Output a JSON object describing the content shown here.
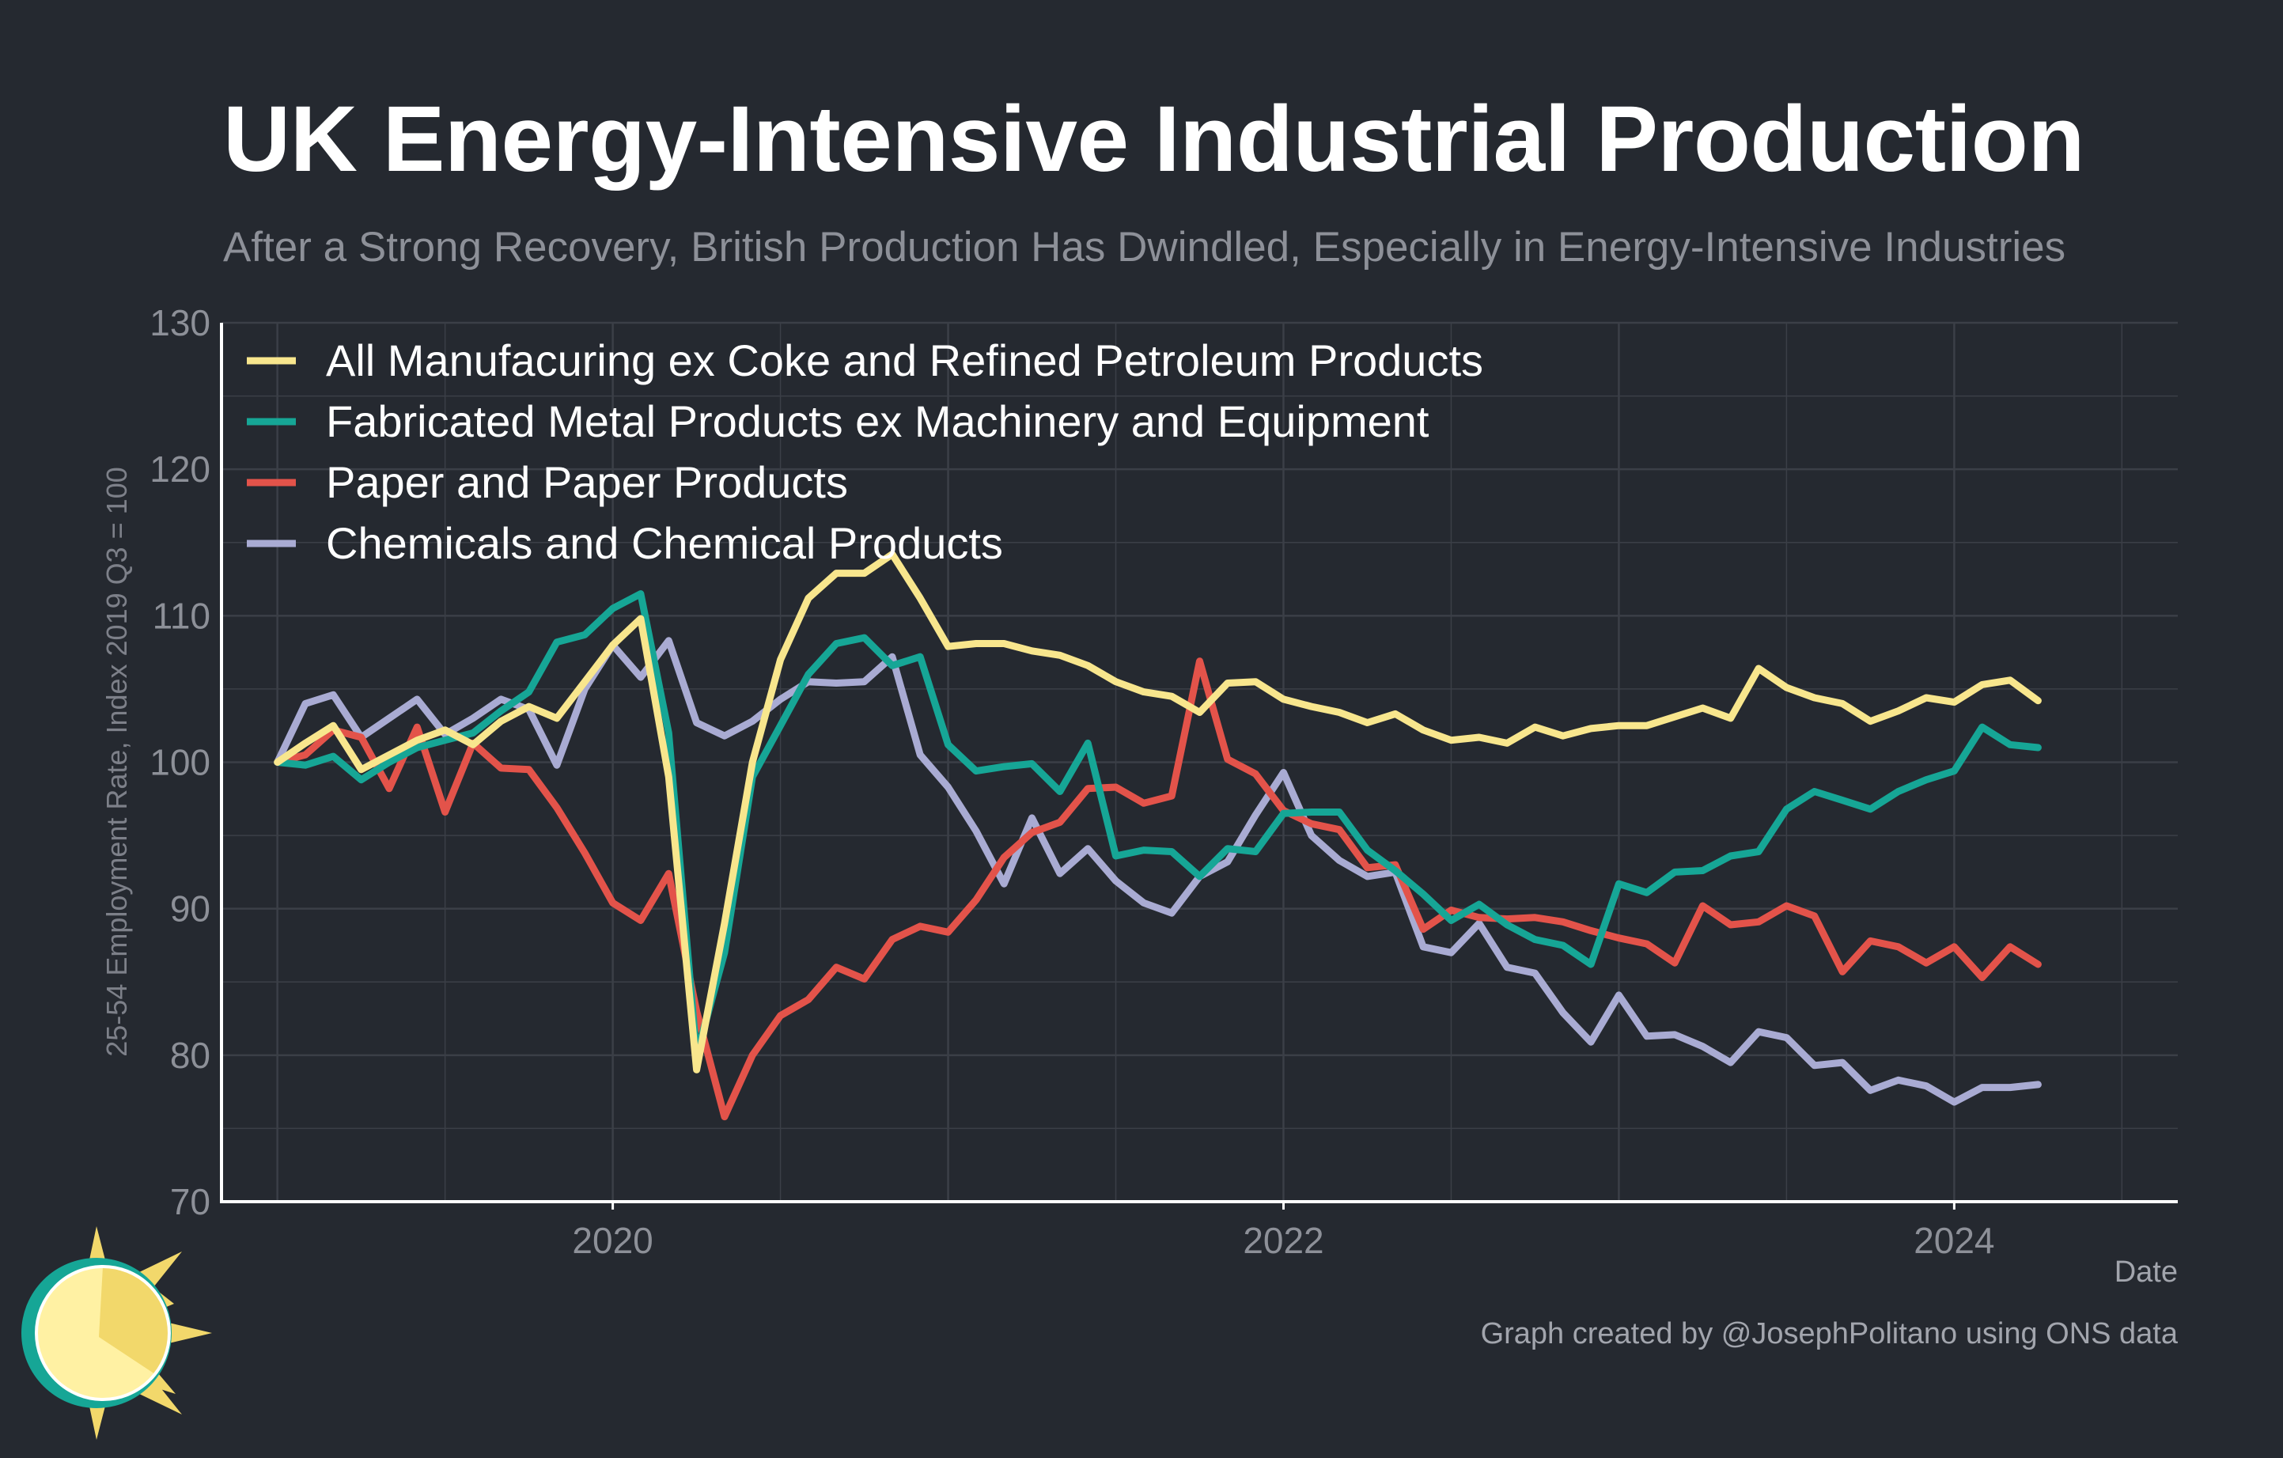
{
  "title": "UK Energy-Intensive Industrial Production",
  "subtitle": "After a Strong Recovery, British Production Has Dwindled, Especially in Energy-Intensive Industries",
  "credit": "Graph created by @JosephPolitano using ONS data",
  "colors": {
    "background": "#252930",
    "grid": "#3b3f47",
    "axis": "#ffffff",
    "text_muted": "#8d9098"
  },
  "chart_data": {
    "type": "line",
    "xlabel": "Date",
    "ylabel": "25-54 Employment Rate, Index 2019 Q3 = 100",
    "ylim": [
      70,
      130
    ],
    "yticks": [
      70,
      80,
      90,
      100,
      110,
      120,
      130
    ],
    "xlim": [
      "2018-11",
      "2024-09"
    ],
    "xticks": [
      {
        "date": "2020-01",
        "label": "2020"
      },
      {
        "date": "2022-01",
        "label": "2022"
      },
      {
        "date": "2024-01",
        "label": "2024"
      }
    ],
    "grid": true,
    "legend_position": "top-left",
    "start_month": "2019-01",
    "frequency": "monthly",
    "series": [
      {
        "name": "All Manufacuring ex Coke and Refined Petroleum Products",
        "color": "#f8e68d",
        "values": [
          100,
          101.3,
          102.5,
          99.5,
          100.5,
          101.5,
          102.2,
          101.2,
          102.8,
          103.8,
          103,
          105.5,
          108,
          109.8,
          99,
          79,
          89,
          100,
          107,
          111.2,
          112.9,
          112.9,
          114.2,
          111.2,
          107.9,
          108.1,
          108.1,
          107.6,
          107.3,
          106.6,
          105.5,
          104.8,
          104.5,
          103.4,
          105.4,
          105.5,
          104.3,
          103.8,
          103.4,
          102.7,
          103.3,
          102.2,
          101.5,
          101.7,
          101.3,
          102.4,
          101.8,
          102.3,
          102.5,
          102.5,
          103.1,
          103.7,
          103,
          106.4,
          105.1,
          104.4,
          104,
          102.8,
          103.5,
          104.4,
          104.1,
          105.3,
          105.6,
          104.2
        ]
      },
      {
        "name": "Fabricated Metal Products ex Machinery and Equipment",
        "color": "#16a696",
        "values": [
          100,
          99.8,
          100.4,
          98.8,
          100,
          101,
          101.5,
          102,
          103.5,
          104.8,
          108.2,
          108.7,
          110.5,
          111.5,
          102,
          80,
          87,
          99,
          102.5,
          106,
          108.1,
          108.5,
          106.6,
          107.2,
          101.2,
          99.4,
          99.7,
          99.9,
          98,
          101.3,
          93.6,
          94,
          93.9,
          92.2,
          94.1,
          93.9,
          96.5,
          96.6,
          96.6,
          94,
          92.6,
          91,
          89.2,
          90.3,
          88.9,
          87.9,
          87.5,
          86.2,
          91.7,
          91.1,
          92.5,
          92.6,
          93.6,
          93.9,
          96.8,
          98,
          97.4,
          96.8,
          98,
          98.8,
          99.4,
          102.4,
          101.2,
          101
        ]
      },
      {
        "name": "Paper and Paper Products",
        "color": "#e3534a",
        "values": [
          100,
          100.5,
          102.2,
          101.7,
          98.2,
          102.4,
          96.6,
          101.3,
          99.6,
          99.5,
          96.9,
          93.8,
          90.4,
          89.2,
          92.4,
          83,
          75.8,
          80,
          82.7,
          83.8,
          86,
          85.2,
          87.9,
          88.8,
          88.4,
          90.6,
          93.5,
          95.2,
          95.9,
          98.2,
          98.3,
          97.2,
          97.7,
          106.9,
          100.2,
          99.2,
          96.7,
          95.8,
          95.4,
          92.8,
          93,
          88.6,
          89.9,
          89.4,
          89.3,
          89.4,
          89.1,
          88.5,
          88,
          87.6,
          86.3,
          90.2,
          88.9,
          89.1,
          90.2,
          89.5,
          85.7,
          87.8,
          87.4,
          86.3,
          87.4,
          85.3,
          87.4,
          86.2
        ]
      },
      {
        "name": "Chemicals and Chemical Products",
        "color": "#a9abd3",
        "values": [
          100,
          104,
          104.6,
          101.7,
          103,
          104.3,
          101.9,
          103,
          104.3,
          103.6,
          99.8,
          105,
          108,
          105.8,
          108.3,
          102.7,
          101.8,
          102.8,
          104.3,
          105.5,
          105.4,
          105.5,
          107.2,
          100.5,
          98.3,
          95.3,
          91.7,
          96.2,
          92.4,
          94.1,
          91.9,
          90.4,
          89.7,
          92.2,
          93.2,
          96.4,
          99.3,
          95,
          93.3,
          92.2,
          92.5,
          87.4,
          87,
          89,
          86,
          85.6,
          82.9,
          80.9,
          84.1,
          81.3,
          81.4,
          80.6,
          79.5,
          81.6,
          81.2,
          79.3,
          79.5,
          77.6,
          78.3,
          77.9,
          76.8,
          77.8,
          77.8,
          78
        ]
      }
    ]
  }
}
